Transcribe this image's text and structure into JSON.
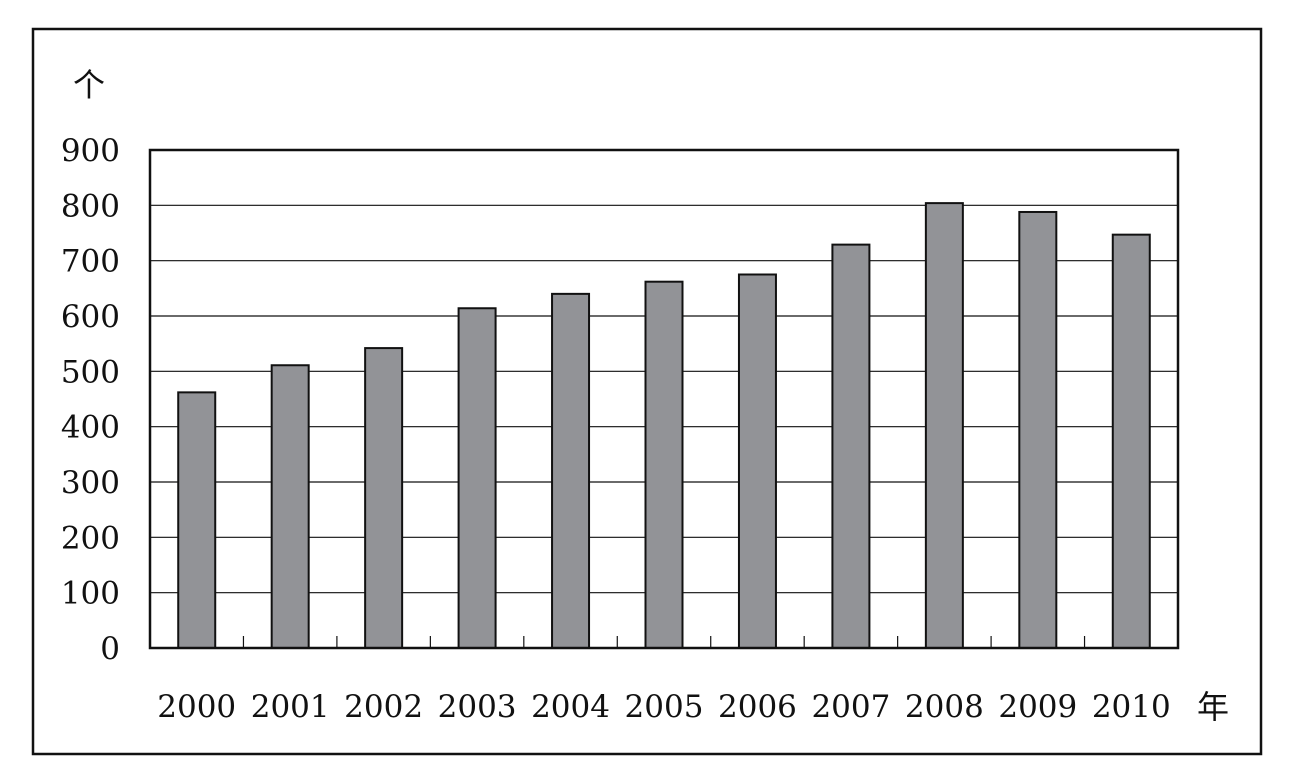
{
  "chart_data": {
    "type": "bar",
    "categories": [
      "2000",
      "2001",
      "2002",
      "2003",
      "2004",
      "2005",
      "2006",
      "2007",
      "2008",
      "2009",
      "2010"
    ],
    "values": [
      462,
      511,
      542,
      614,
      640,
      662,
      675,
      729,
      804,
      788,
      747
    ],
    "title": "",
    "ylabel": "个",
    "xlabel": "年",
    "ylim": [
      0,
      900
    ],
    "yticks": [
      0,
      100,
      200,
      300,
      400,
      500,
      600,
      700,
      800,
      900
    ],
    "grid": true,
    "legend": "none",
    "bar_color": "#929397",
    "bar_edge_color": "#111111"
  }
}
